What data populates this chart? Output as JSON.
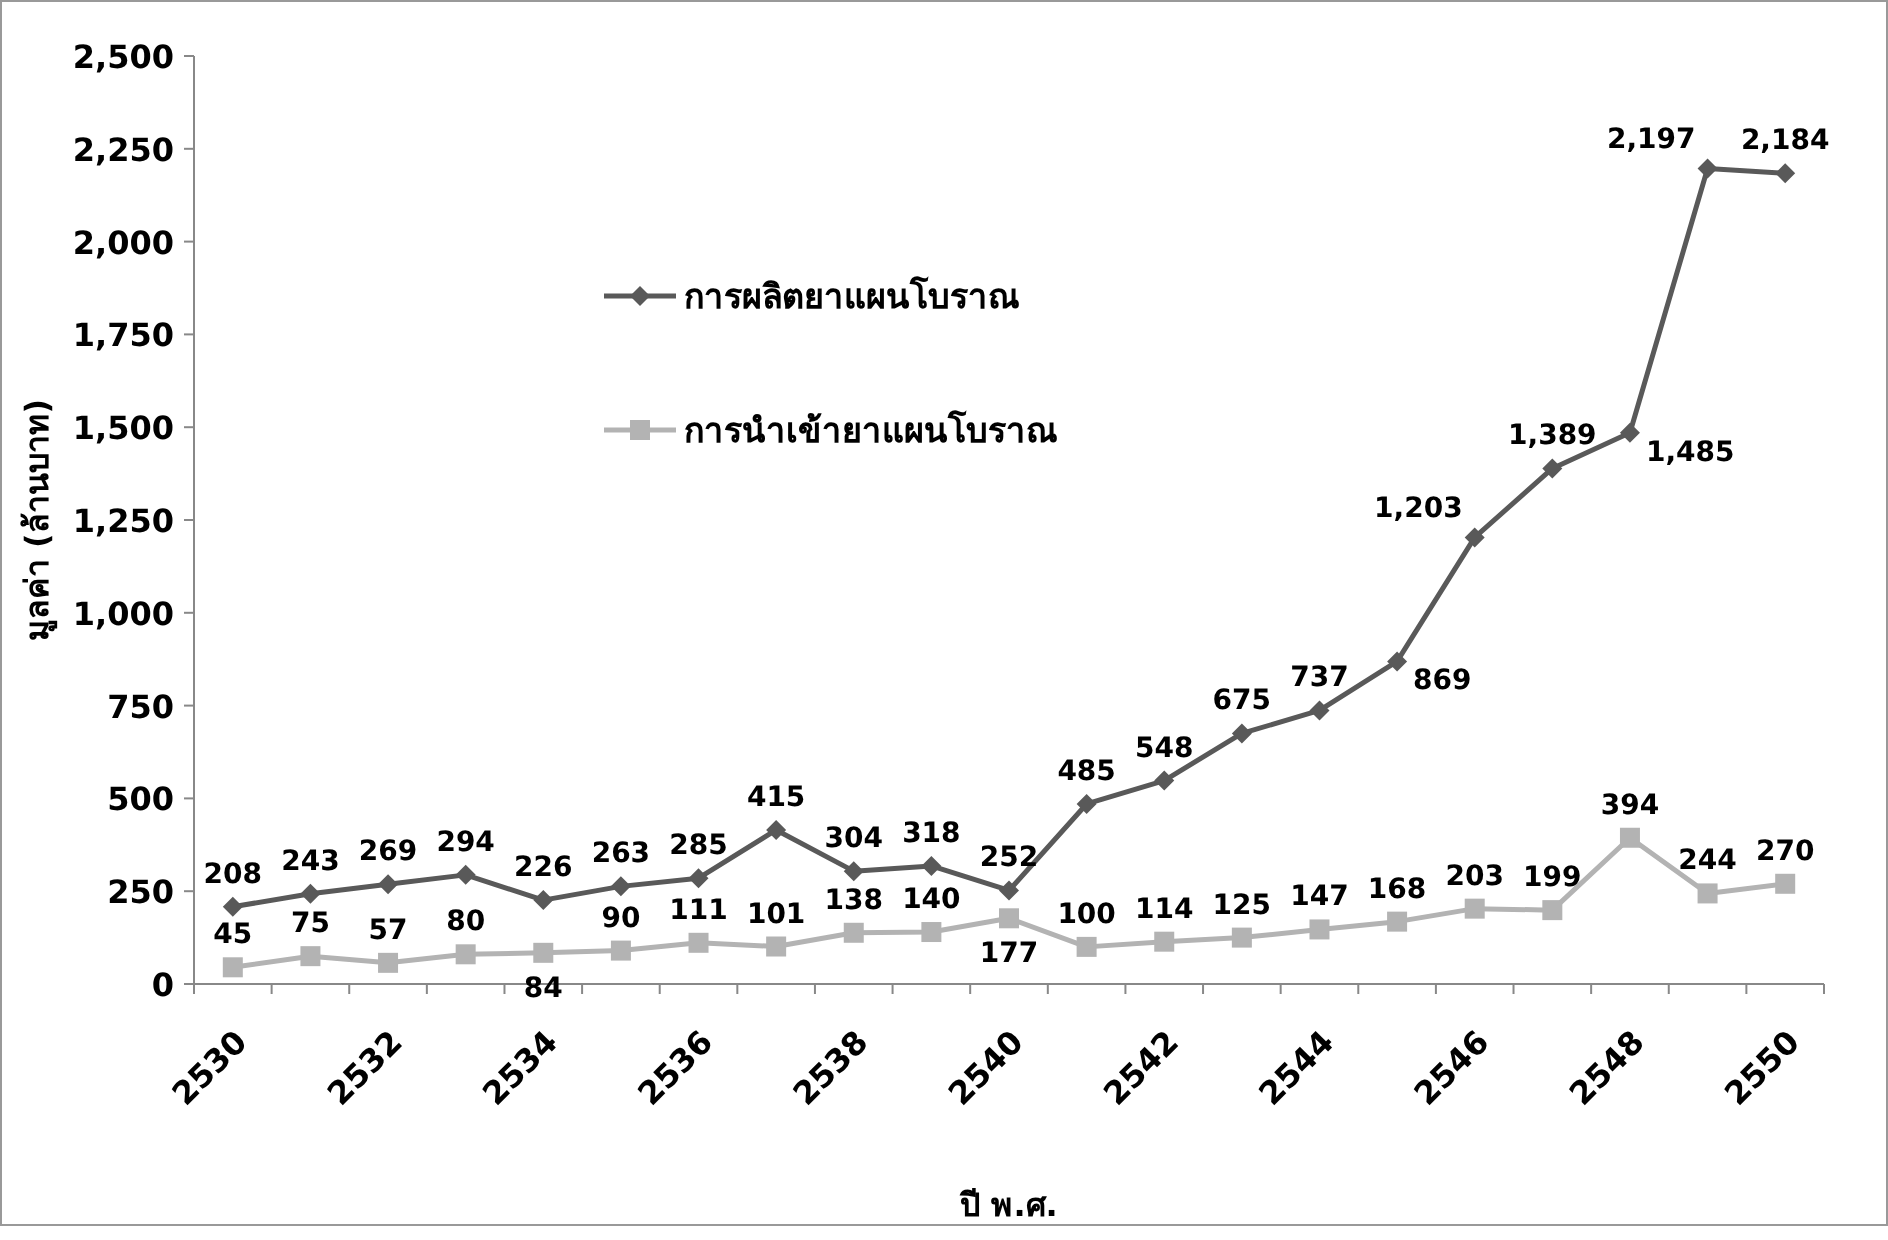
{
  "chart_data": {
    "type": "line",
    "categories": [
      "2530",
      null,
      "2532",
      null,
      "2534",
      null,
      "2536",
      null,
      "2538",
      null,
      "2540",
      null,
      "2542",
      null,
      "2544",
      null,
      "2546",
      null,
      "2548",
      null,
      "2550"
    ],
    "series": [
      {
        "name": "การผลิตยาแผนโบราณ",
        "color": "#595959",
        "marker": "diamond",
        "values": [
          208,
          243,
          269,
          294,
          226,
          263,
          285,
          415,
          304,
          318,
          252,
          485,
          548,
          675,
          737,
          869,
          1203,
          1389,
          1485,
          2197,
          2184
        ],
        "value_labels": [
          "208",
          "243",
          "269",
          "294",
          "226",
          "263",
          "285",
          "415",
          "304",
          "318",
          "252",
          "485",
          "548",
          "675",
          "737",
          "869",
          "1,203",
          "1,389",
          "1,485",
          "2,197",
          "2,184"
        ]
      },
      {
        "name": "การนำเข้ายาแผนโบราณ",
        "color": "#b3b3b3",
        "marker": "square",
        "values": [
          45,
          75,
          57,
          80,
          84,
          90,
          111,
          101,
          138,
          140,
          177,
          100,
          114,
          125,
          147,
          168,
          203,
          199,
          394,
          244,
          270
        ],
        "value_labels": [
          "45",
          "75",
          "57",
          "80",
          "84",
          "90",
          "111",
          "101",
          "138",
          "140",
          "177",
          "100",
          "114",
          "125",
          "147",
          "168",
          "203",
          "199",
          "394",
          "244",
          "270"
        ]
      }
    ],
    "ylim": [
      0,
      2500
    ],
    "yticks": [
      {
        "value": 0,
        "label": "0"
      },
      {
        "value": 250,
        "label": "250"
      },
      {
        "value": 500,
        "label": "500"
      },
      {
        "value": 750,
        "label": "750"
      },
      {
        "value": 1000,
        "label": "1,000"
      },
      {
        "value": 1250,
        "label": "1,250"
      },
      {
        "value": 1500,
        "label": "1,500"
      },
      {
        "value": 1750,
        "label": "1,750"
      },
      {
        "value": 2000,
        "label": "2,000"
      },
      {
        "value": 2250,
        "label": "2,250"
      },
      {
        "value": 2500,
        "label": "2,500"
      }
    ],
    "ylabel": "มูลค่า (ล้านบาท)",
    "xlabel": "ปี พ.ศ.",
    "legend": "top left",
    "grid": false
  }
}
